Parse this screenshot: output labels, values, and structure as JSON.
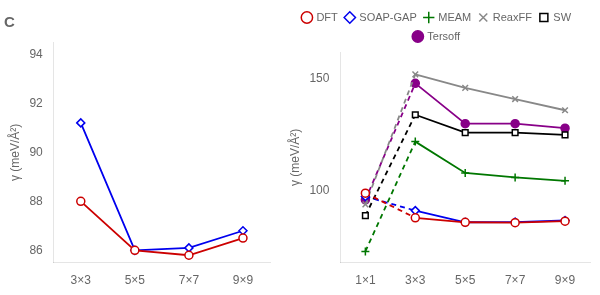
{
  "chart_data": [
    {
      "type": "line",
      "title": "C",
      "categories": [
        "3×3",
        "5×5",
        "7×7",
        "9×9"
      ],
      "series": [
        {
          "name": "DFT",
          "color": "#cc0000",
          "marker": "circle_open",
          "line_style": "solid",
          "values": [
            88.0,
            86.0,
            85.8,
            86.5
          ]
        },
        {
          "name": "SOAP-GAP",
          "color": "#0000ee",
          "marker": "diamond_open",
          "line_style": "solid",
          "values": [
            91.2,
            86.0,
            86.1,
            86.8
          ]
        }
      ],
      "ylabel": "γ (meV/Å²)",
      "ylim": [
        85.5,
        94.5
      ],
      "yticks": [
        86,
        88,
        90,
        92,
        94
      ],
      "grid": false
    },
    {
      "type": "line",
      "categories": [
        "1×1",
        "3×3",
        "5×5",
        "7×7",
        "9×9"
      ],
      "series": [
        {
          "name": "DFT",
          "color": "#cc0000",
          "marker": "circle_open",
          "line_style": "first_dashed",
          "values": [
            99.0,
            88.0,
            86.0,
            85.8,
            86.5
          ]
        },
        {
          "name": "SOAP-GAP",
          "color": "#0000ee",
          "marker": "diamond_open",
          "line_style": "first_dashed",
          "values": [
            97.5,
            91.2,
            86.0,
            86.1,
            86.8
          ]
        },
        {
          "name": "MEAM",
          "color": "#007700",
          "marker": "plus",
          "line_style": "first_dashed",
          "values": [
            73.0,
            122.0,
            108.0,
            106.0,
            104.5
          ]
        },
        {
          "name": "ReaxFF",
          "color": "#888888",
          "marker": "x",
          "line_style": "first_dashed",
          "values": [
            94.0,
            152.0,
            146.0,
            141.0,
            136.0
          ]
        },
        {
          "name": "SW",
          "color": "#000000",
          "marker": "square_open",
          "line_style": "first_dashed",
          "values": [
            89.0,
            134.0,
            126.0,
            126.0,
            125.0
          ]
        },
        {
          "name": "Tersoff",
          "color": "#880088",
          "marker": "circle",
          "line_style": "first_dashed",
          "values": [
            96.0,
            148.0,
            130.0,
            130.0,
            128.0
          ]
        }
      ],
      "ylabel": "γ (meV/Å²)",
      "ylim": [
        68,
        162
      ],
      "yticks": [
        100,
        150
      ],
      "grid": false,
      "legend": "top"
    }
  ]
}
